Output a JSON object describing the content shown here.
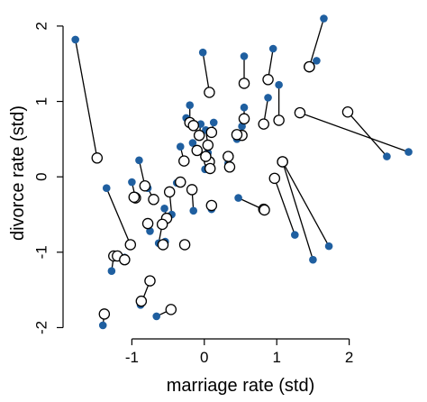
{
  "chart_data": {
    "type": "scatter",
    "title": "",
    "xlabel": "marriage rate (std)",
    "ylabel": "divorce rate (std)",
    "xlim": [
      -1.95,
      2.95
    ],
    "ylim": [
      -2.15,
      2.25
    ],
    "xticks": [
      -1,
      0,
      1,
      2
    ],
    "yticks": [
      -2,
      -1,
      0,
      1,
      2
    ],
    "xtick_labels": [
      "-1",
      "0",
      "1",
      "2"
    ],
    "ytick_labels": [
      "-2",
      "-1",
      "0",
      "1",
      "2"
    ],
    "grid": false,
    "legend": "none",
    "observed_color": "#1f5fa0",
    "estimate_color": "#000000",
    "pairs": [
      {
        "obs": [
          -1.78,
          1.82
        ],
        "est": [
          -1.48,
          0.25
        ]
      },
      {
        "obs": [
          -0.02,
          1.65
        ],
        "est": [
          0.07,
          1.12
        ]
      },
      {
        "obs": [
          0.55,
          1.6
        ],
        "est": [
          0.55,
          1.24
        ]
      },
      {
        "obs": [
          0.95,
          1.7
        ],
        "est": [
          0.88,
          1.29
        ]
      },
      {
        "obs": [
          1.65,
          2.1
        ],
        "est": [
          1.45,
          1.46
        ]
      },
      {
        "obs": [
          1.55,
          1.54
        ],
        "est": [
          1.45,
          1.46
        ]
      },
      {
        "obs": [
          0.88,
          1.05
        ],
        "est": [
          0.82,
          0.7
        ]
      },
      {
        "obs": [
          1.03,
          1.22
        ],
        "est": [
          1.03,
          0.75
        ]
      },
      {
        "obs": [
          2.82,
          0.33
        ],
        "est": [
          1.32,
          0.85
        ]
      },
      {
        "obs": [
          2.52,
          0.27
        ],
        "est": [
          1.98,
          0.86
        ]
      },
      {
        "obs": [
          0.55,
          0.92
        ],
        "est": [
          0.55,
          0.77
        ]
      },
      {
        "obs": [
          0.52,
          0.67
        ],
        "est": [
          0.52,
          0.55
        ]
      },
      {
        "obs": [
          0.45,
          0.5
        ],
        "est": [
          0.45,
          0.56
        ]
      },
      {
        "obs": [
          -0.2,
          0.95
        ],
        "est": [
          -0.2,
          0.72
        ]
      },
      {
        "obs": [
          -0.25,
          0.78
        ],
        "est": [
          -0.15,
          0.68
        ]
      },
      {
        "obs": [
          0.13,
          0.72
        ],
        "est": [
          0.1,
          0.59
        ]
      },
      {
        "obs": [
          -0.05,
          0.7
        ],
        "est": [
          -0.07,
          0.55
        ]
      },
      {
        "obs": [
          0.02,
          0.62
        ],
        "est": [
          0.05,
          0.42
        ]
      },
      {
        "obs": [
          -0.33,
          0.4
        ],
        "est": [
          -0.28,
          0.21
        ]
      },
      {
        "obs": [
          -0.16,
          0.45
        ],
        "est": [
          -0.1,
          0.35
        ]
      },
      {
        "obs": [
          0.05,
          0.32
        ],
        "est": [
          0.07,
          0.2
        ]
      },
      {
        "obs": [
          0.08,
          0.15
        ],
        "est": [
          0.08,
          0.11
        ]
      },
      {
        "obs": [
          0.33,
          0.18
        ],
        "est": [
          0.33,
          0.27
        ]
      },
      {
        "obs": [
          0.35,
          0.12
        ],
        "est": [
          0.35,
          0.13
        ]
      },
      {
        "obs": [
          0.01,
          0.1
        ],
        "est": [
          0.02,
          0.27
        ]
      },
      {
        "obs": [
          -0.9,
          0.22
        ],
        "est": [
          -0.82,
          -0.12
        ]
      },
      {
        "obs": [
          -1.0,
          -0.07
        ],
        "est": [
          -0.95,
          -0.28
        ]
      },
      {
        "obs": [
          -0.95,
          -0.25
        ],
        "est": [
          -0.97,
          -0.27
        ]
      },
      {
        "obs": [
          -0.78,
          -0.15
        ],
        "est": [
          -0.7,
          -0.3
        ]
      },
      {
        "obs": [
          -0.38,
          -0.08
        ],
        "est": [
          -0.33,
          -0.07
        ]
      },
      {
        "obs": [
          -0.45,
          -0.5
        ],
        "est": [
          -0.48,
          -0.2
        ]
      },
      {
        "obs": [
          -0.15,
          -0.45
        ],
        "est": [
          -0.17,
          -0.17
        ]
      },
      {
        "obs": [
          0.1,
          -0.43
        ],
        "est": [
          0.1,
          -0.38
        ]
      },
      {
        "obs": [
          -0.55,
          -0.42
        ],
        "est": [
          -0.52,
          -0.55
        ]
      },
      {
        "obs": [
          -0.75,
          -0.72
        ],
        "est": [
          -0.78,
          -0.62
        ]
      },
      {
        "obs": [
          -0.63,
          -0.88
        ],
        "est": [
          -0.58,
          -0.63
        ]
      },
      {
        "obs": [
          -0.54,
          -0.86
        ],
        "est": [
          -0.57,
          -0.9
        ]
      },
      {
        "obs": [
          -0.28,
          -0.88
        ],
        "est": [
          -0.27,
          -0.9
        ]
      },
      {
        "obs": [
          -1.35,
          -0.15
        ],
        "est": [
          -1.02,
          -0.9
        ]
      },
      {
        "obs": [
          -1.28,
          -1.25
        ],
        "est": [
          -1.25,
          -1.05
        ]
      },
      {
        "obs": [
          -1.2,
          -1.05
        ],
        "est": [
          -1.2,
          -1.05
        ]
      },
      {
        "obs": [
          -1.1,
          -1.07
        ],
        "est": [
          -1.1,
          -1.1
        ]
      },
      {
        "obs": [
          0.82,
          -0.45
        ],
        "est": [
          0.82,
          -0.43
        ]
      },
      {
        "obs": [
          0.47,
          -0.28
        ],
        "est": [
          0.83,
          -0.44
        ]
      },
      {
        "obs": [
          1.25,
          -0.77
        ],
        "est": [
          0.97,
          -0.02
        ]
      },
      {
        "obs": [
          1.5,
          -1.1
        ],
        "est": [
          1.08,
          0.2
        ]
      },
      {
        "obs": [
          1.72,
          -0.92
        ],
        "est": [
          1.08,
          0.2
        ]
      },
      {
        "obs": [
          -0.88,
          -1.7
        ],
        "est": [
          -0.75,
          -1.38
        ]
      },
      {
        "obs": [
          -0.85,
          -1.65
        ],
        "est": [
          -0.87,
          -1.65
        ]
      },
      {
        "obs": [
          -0.66,
          -1.85
        ],
        "est": [
          -0.46,
          -1.76
        ]
      },
      {
        "obs": [
          -1.4,
          -1.97
        ],
        "est": [
          -1.38,
          -1.82
        ]
      }
    ]
  }
}
